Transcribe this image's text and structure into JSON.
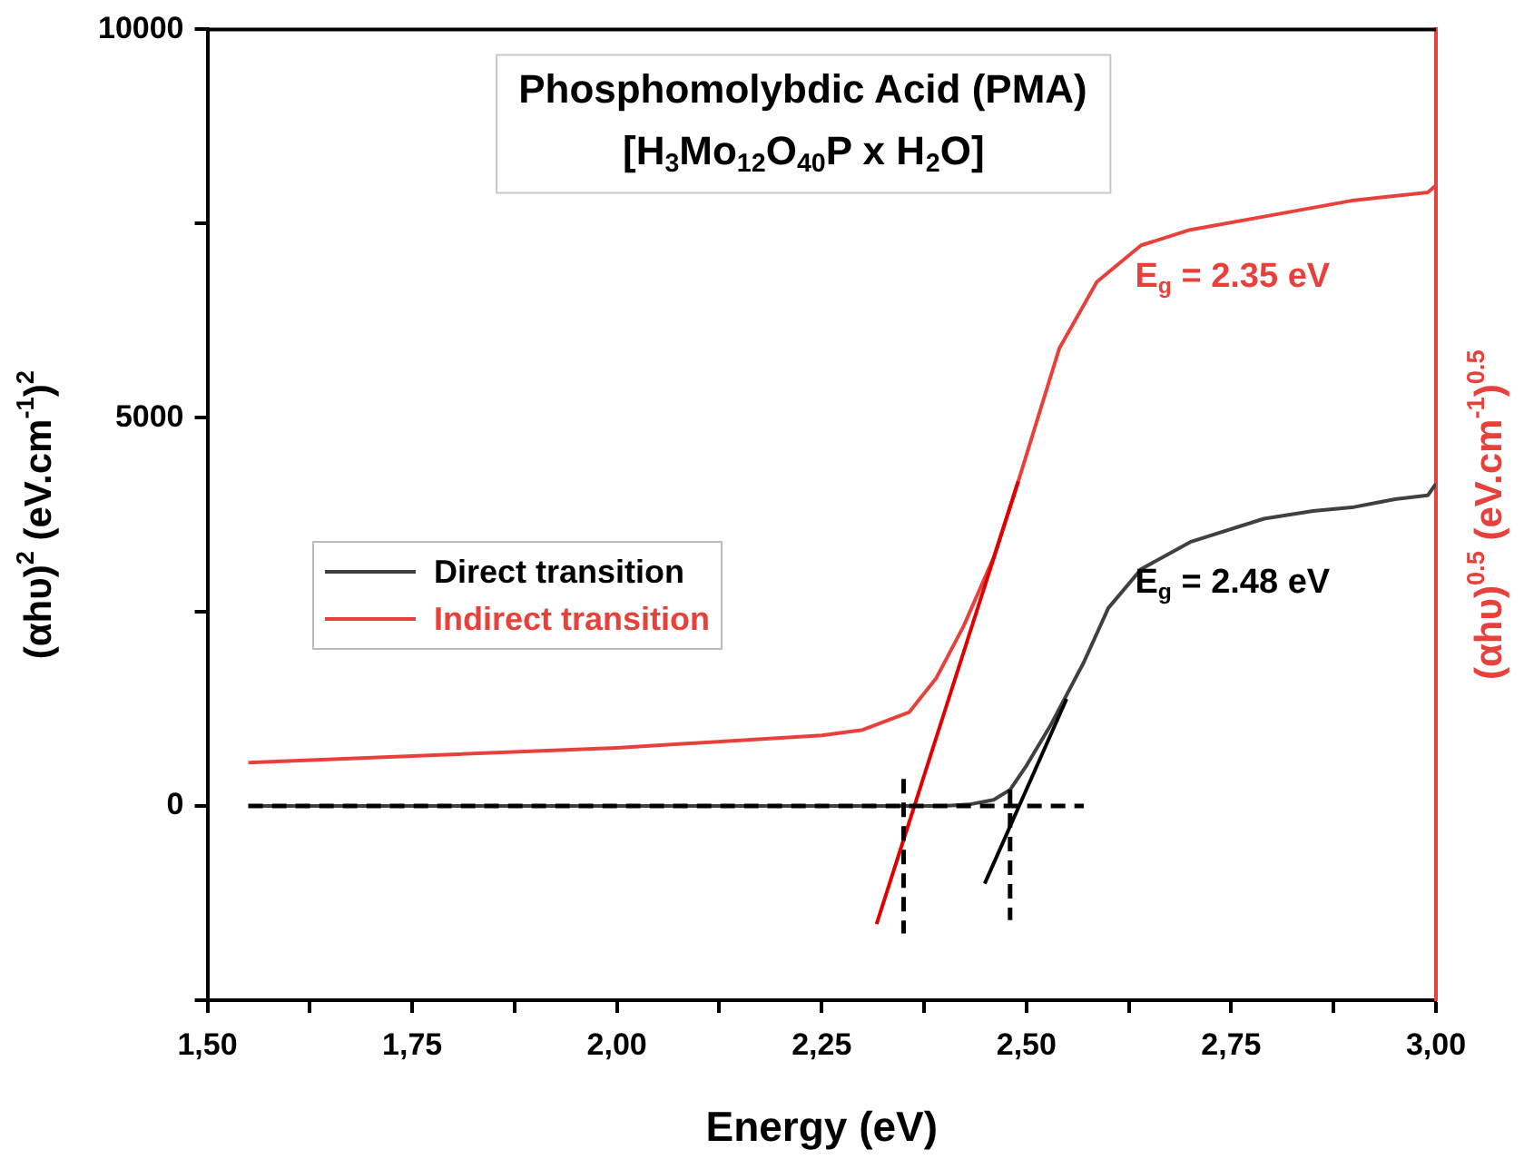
{
  "chart_data": {
    "type": "line",
    "title": "Phosphomolybdic Acid (PMA)",
    "subtitle": "[H$_{3}$Mo$_{12}$O$_{40}$P x H$_{2}$O]",
    "xlabel": "Energy (eV)",
    "ylabel": "(αhυ)$^{2}$ (eV.cm$^{-1}$)$^{2}$",
    "y2label": "(αhυ)$^{0.5}$ (eV.cm$^{-1}$)$^{0.5}$",
    "annotations": [
      "E$_{g}$ = 2.48 eV",
      "E$_{g}$ = 2.35 eV"
    ],
    "xlim": [
      1.5,
      3.0
    ],
    "xticks": [
      {
        "value": 1.5,
        "label": "1,50"
      },
      {
        "value": 1.625,
        "label": null
      },
      {
        "value": 1.75,
        "label": "1,75"
      },
      {
        "value": 1.875,
        "label": null
      },
      {
        "value": 2.0,
        "label": "2,00"
      },
      {
        "value": 2.125,
        "label": null
      },
      {
        "value": 2.25,
        "label": "2,25"
      },
      {
        "value": 2.375,
        "label": null
      },
      {
        "value": 2.5,
        "label": "2,50"
      },
      {
        "value": 2.625,
        "label": null
      },
      {
        "value": 2.75,
        "label": "2,75"
      },
      {
        "value": 2.875,
        "label": null
      },
      {
        "value": 3.0,
        "label": "3,00"
      }
    ],
    "ylim": [
      -2500,
      10000
    ],
    "yticks": [
      {
        "value": -2500,
        "label": null
      },
      0,
      {
        "value": 2500,
        "label": null
      },
      5000,
      {
        "value": 7500,
        "label": null
      },
      10000
    ],
    "legend": "left",
    "grid": false,
    "marker": "none",
    "series": [
      {
        "name": "Direct transition",
        "color": "#404040",
        "x": [
          1.55,
          2.0,
          2.4,
          2.43,
          2.46,
          2.48,
          2.5,
          2.53,
          2.57,
          2.6,
          2.64,
          2.7,
          2.79,
          2.85,
          2.9,
          2.95,
          2.99,
          3.0
        ],
        "values": [
          0,
          0,
          0,
          20,
          80,
          210,
          520,
          1050,
          1850,
          2550,
          3050,
          3400,
          3700,
          3800,
          3850,
          3950,
          4000,
          4150
        ]
      },
      {
        "name": "Indirect transition",
        "color": "#e8413c",
        "x": [
          1.55,
          2.0,
          2.25,
          2.3,
          2.357,
          2.39,
          2.423,
          2.46,
          2.49,
          2.54,
          2.586,
          2.64,
          2.7,
          2.79,
          2.9,
          2.99,
          3.0
        ],
        "values": [
          560,
          750,
          910,
          980,
          1210,
          1650,
          2310,
          3200,
          4180,
          5890,
          6750,
          7220,
          7420,
          7590,
          7800,
          7900,
          7990
        ]
      },
      {
        "color": "#e00000",
        "x": [
          2.317,
          2.49
        ],
        "values": [
          -1520,
          4180
        ]
      },
      {
        "color": "#000000",
        "x": [
          2.449,
          2.549
        ],
        "values": [
          -1000,
          1380
        ]
      },
      {
        "color": "#000000",
        "x": [
          1.55,
          2.57
        ],
        "values": [
          0,
          0
        ],
        "line_style": "dashed"
      },
      {
        "color": "#000000",
        "x": [
          2.35,
          2.35
        ],
        "values": [
          350,
          -1640
        ],
        "line_style": "dashed"
      },
      {
        "color": "#000000",
        "x": [
          2.48,
          2.48
        ],
        "values": [
          210,
          -1470
        ],
        "line_style": "dashed"
      }
    ]
  }
}
